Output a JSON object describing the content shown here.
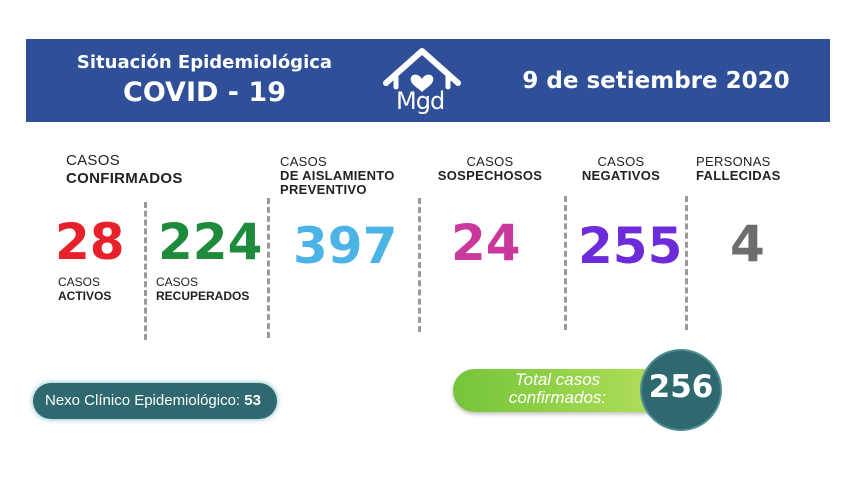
{
  "header": {
    "title": "Situación Epidemiológica",
    "subtitle": "COVID - 19",
    "logo_text": "Mgd",
    "date": "9 de setiembre 2020"
  },
  "colors": {
    "header_bg": "#2f4f98",
    "activos": "#e8202a",
    "recuperados": "#1e8b3c",
    "aislamiento": "#4cb3e6",
    "sospechosos": "#c9389a",
    "negativos": "#6d2bd9",
    "fallecidas": "#6d6d6d",
    "total_green": "#74c43a",
    "teal": "#2f6970"
  },
  "stats": {
    "confirmados": {
      "line1": "CASOS",
      "line2": "CONFIRMADOS"
    },
    "activos": {
      "value": "28",
      "line1": "CASOS",
      "line2": "ACTIVOS"
    },
    "recuperados": {
      "value": "224",
      "line1": "CASOS",
      "line2": "RECUPERADOS"
    },
    "aislamiento": {
      "line1": "CASOS",
      "line2": "DE AISLAMIENTO",
      "line3": "PREVENTIVO",
      "value": "397"
    },
    "sospechosos": {
      "line1": "CASOS",
      "line2": "SOSPECHOSOS",
      "value": "24"
    },
    "negativos": {
      "line1": "CASOS",
      "line2": "NEGATIVOS",
      "value": "255"
    },
    "fallecidas": {
      "line1": "PERSONAS",
      "line2": "FALLECIDAS",
      "value": "4"
    }
  },
  "nexo": {
    "label": "Nexo Clínico Epidemiológico:",
    "value": "53"
  },
  "total": {
    "line1": "Total casos",
    "line2": "confirmados:",
    "value": "256"
  }
}
